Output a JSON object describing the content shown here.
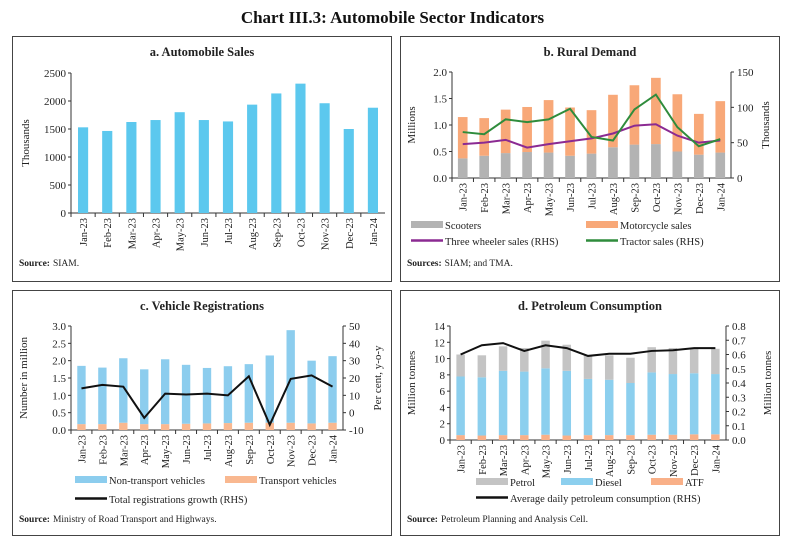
{
  "figure_title": "Chart III.3: Automobile Sector Indicators",
  "chart_data": [
    {
      "type": "bar",
      "title": "a. Automobile Sales",
      "ylabel": "Thousands",
      "ylim": [
        0,
        2500
      ],
      "categories": [
        "Jan-23",
        "Feb-23",
        "Mar-23",
        "Apr-23",
        "May-23",
        "Jun-23",
        "Jul-23",
        "Aug-23",
        "Sep-23",
        "Oct-23",
        "Nov-23",
        "Dec-23",
        "Jan-24"
      ],
      "series": [
        {
          "values": [
            1530,
            1465,
            1625,
            1660,
            1800,
            1660,
            1635,
            1935,
            2135,
            2310,
            1960,
            1500,
            1880
          ],
          "color": "#5cc8ee",
          "kind": "bar"
        }
      ],
      "source_label": "Source:",
      "source": "SIAM."
    },
    {
      "type": "bar",
      "title": "b. Rural Demand",
      "ylabel": "Millions",
      "y2label": "Thousands",
      "ylim": [
        0,
        2.0
      ],
      "y2lim": [
        0,
        150
      ],
      "categories": [
        "Jan-23",
        "Feb-23",
        "Mar-23",
        "Apr-23",
        "May-23",
        "Jun-23",
        "Jul-23",
        "Aug-23",
        "Sep-23",
        "Oct-23",
        "Nov-23",
        "Dec-23",
        "Jan-24"
      ],
      "series": [
        {
          "name": "Scooters",
          "kind": "bar",
          "color": "#b3b3b3",
          "values": [
            0.37,
            0.42,
            0.47,
            0.49,
            0.48,
            0.42,
            0.46,
            0.58,
            0.63,
            0.64,
            0.5,
            0.44,
            0.48
          ]
        },
        {
          "name": "Motorcycle sales",
          "kind": "bar",
          "color": "#f8a878",
          "values": [
            0.78,
            0.71,
            0.82,
            0.85,
            0.99,
            0.91,
            0.82,
            0.99,
            1.12,
            1.25,
            1.08,
            0.77,
            0.97
          ]
        },
        {
          "name": "Three wheeler sales (RHS)",
          "kind": "line",
          "axis": "right",
          "color": "#8b2a92",
          "values": [
            48,
            50,
            54,
            43,
            48,
            52,
            56,
            63,
            74,
            76,
            60,
            50,
            53
          ]
        },
        {
          "name": "Tractor sales (RHS)",
          "kind": "line",
          "axis": "right",
          "color": "#2f8c3c",
          "values": [
            65,
            62,
            83,
            79,
            83,
            98,
            58,
            53,
            97,
            118,
            72,
            45,
            55
          ]
        }
      ],
      "source_label": "Sources:",
      "source": "SIAM; and TMA."
    },
    {
      "type": "bar",
      "title": "c. Vehicle Registrations",
      "ylabel": "Number in million",
      "y2label": "Per cent, y-o-y",
      "ylim": [
        0,
        3.0
      ],
      "y2lim": [
        -10,
        50
      ],
      "categories": [
        "Jan-23",
        "Feb-23",
        "Mar-23",
        "Apr-23",
        "May-23",
        "Jun-23",
        "Jul-23",
        "Aug-23",
        "Sep-23",
        "Oct-23",
        "Nov-23",
        "Dec-23",
        "Jan-24"
      ],
      "series": [
        {
          "name": "Transport vehicles",
          "kind": "bar",
          "color": "#f9b890",
          "values": [
            0.17,
            0.17,
            0.21,
            0.17,
            0.17,
            0.18,
            0.19,
            0.2,
            0.21,
            0.21,
            0.21,
            0.19,
            0.21
          ]
        },
        {
          "name": "Non-transport vehicles",
          "kind": "bar",
          "color": "#8ccdee",
          "values": [
            1.68,
            1.63,
            1.86,
            1.58,
            1.87,
            1.7,
            1.6,
            1.64,
            1.69,
            1.94,
            2.67,
            1.81,
            1.92
          ]
        },
        {
          "name": "Total registrations growth (RHS)",
          "kind": "line",
          "axis": "right",
          "color": "#111111",
          "values": [
            14,
            16,
            15,
            -3,
            11,
            10.5,
            11,
            10,
            21,
            -7,
            19.5,
            21.5,
            15
          ]
        }
      ],
      "source_label": "Source:",
      "source": "Ministry of Road Transport and Highways."
    },
    {
      "type": "bar",
      "title": "d. Petroleum Consumption",
      "ylabel": "Million tonnes",
      "y2label": "Million tonnes",
      "ylim": [
        0,
        14
      ],
      "y2lim": [
        0,
        0.8
      ],
      "categories": [
        "Jan-23",
        "Feb-23",
        "Mar-23",
        "Apr-23",
        "May-23",
        "Jun-23",
        "Jul-23",
        "Aug-23",
        "Sep-23",
        "Oct-23",
        "Nov-23",
        "Dec-23",
        "Jan-24"
      ],
      "series": [
        {
          "name": "ATF",
          "kind": "bar",
          "color": "#f9b088",
          "values": [
            0.6,
            0.55,
            0.6,
            0.6,
            0.65,
            0.55,
            0.6,
            0.6,
            0.6,
            0.65,
            0.65,
            0.7,
            0.7
          ]
        },
        {
          "name": "Diesel",
          "kind": "bar",
          "color": "#8ccfee",
          "values": [
            7.2,
            7.15,
            7.9,
            7.8,
            8.15,
            7.95,
            6.9,
            6.8,
            6.4,
            7.65,
            7.45,
            7.5,
            7.4
          ]
        },
        {
          "name": "Petrol",
          "kind": "bar",
          "color": "#c4c4c4",
          "values": [
            2.7,
            2.7,
            3.0,
            2.9,
            3.4,
            3.2,
            2.9,
            3.0,
            3.1,
            3.1,
            3.2,
            3.1,
            3.1
          ]
        },
        {
          "name": "Average daily petroleum consumption (RHS)",
          "kind": "line",
          "axis": "right",
          "color": "#111111",
          "values": [
            0.6,
            0.665,
            0.68,
            0.625,
            0.665,
            0.645,
            0.59,
            0.605,
            0.605,
            0.625,
            0.63,
            0.645,
            0.645
          ]
        }
      ],
      "source_label": "Source:",
      "source": "Petroleum Planning and Analysis Cell."
    }
  ]
}
